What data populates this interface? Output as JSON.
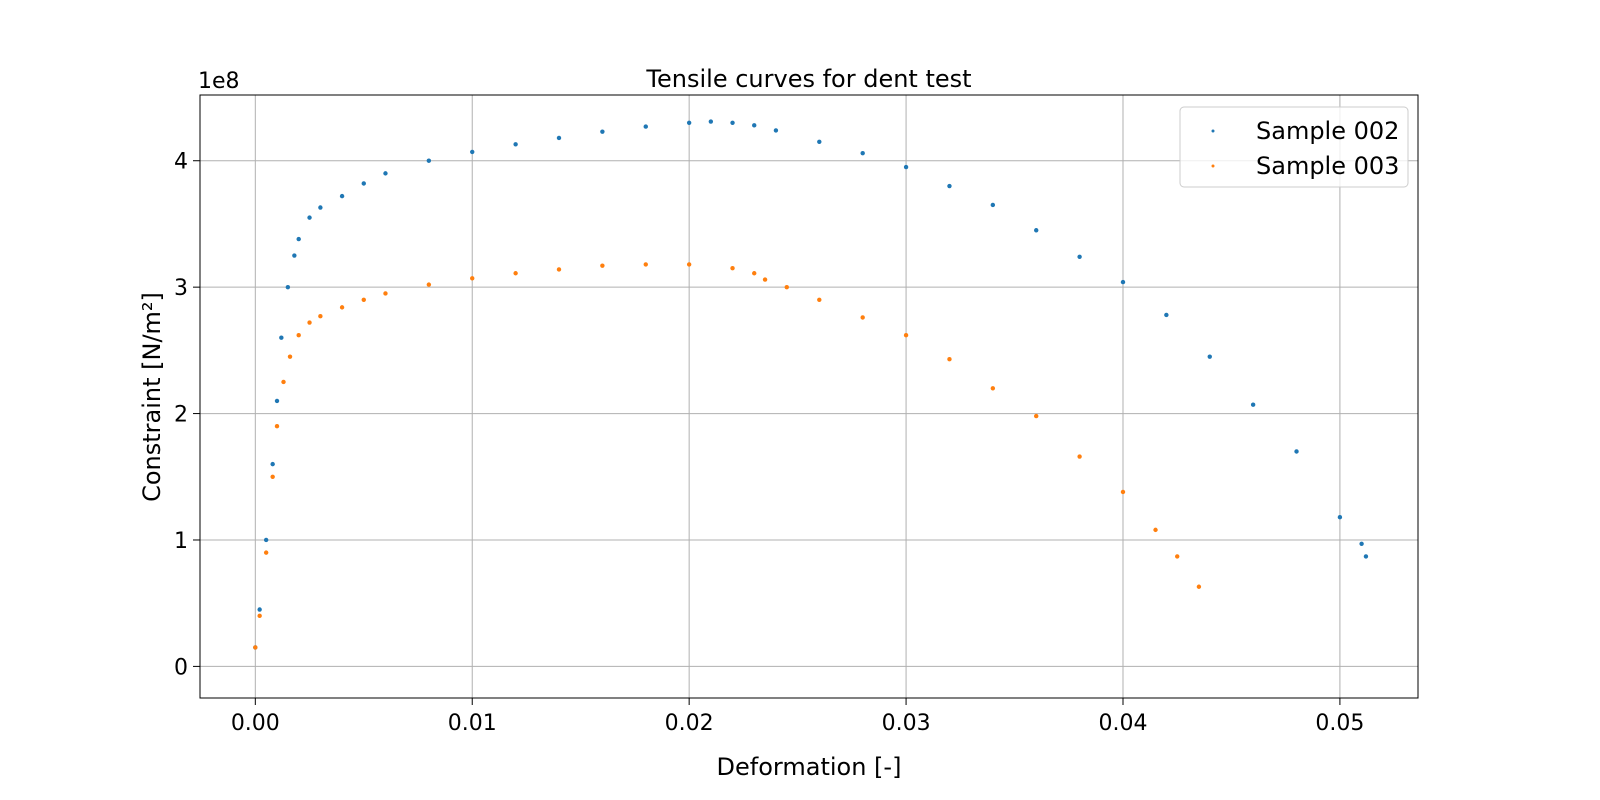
{
  "chart_data": {
    "type": "scatter",
    "title": "Tensile curves for dent test",
    "xlabel": "Deformation [-]",
    "ylabel": "Constraint [N/m²]",
    "y_offset_text": "1e8",
    "xlim": [
      -0.00255,
      0.0536
    ],
    "ylim": [
      -0.25,
      4.52
    ],
    "y_scale_factor": 100000000,
    "x_ticks": [
      0.0,
      0.01,
      0.02,
      0.03,
      0.04,
      0.05
    ],
    "x_tick_labels": [
      "0.00",
      "0.01",
      "0.02",
      "0.03",
      "0.04",
      "0.05"
    ],
    "y_ticks": [
      0,
      1,
      2,
      3,
      4
    ],
    "y_tick_labels": [
      "0",
      "1",
      "2",
      "3",
      "4"
    ],
    "grid": true,
    "legend_position": "upper-right",
    "series": [
      {
        "name": "Sample 002",
        "color": "#1f77b4",
        "x": [
          0.0,
          0.0002,
          0.0005,
          0.0008,
          0.001,
          0.0012,
          0.0015,
          0.0018,
          0.002,
          0.0025,
          0.003,
          0.004,
          0.005,
          0.006,
          0.008,
          0.01,
          0.012,
          0.014,
          0.016,
          0.018,
          0.02,
          0.021,
          0.022,
          0.023,
          0.024,
          0.026,
          0.028,
          0.03,
          0.032,
          0.034,
          0.036,
          0.038,
          0.04,
          0.042,
          0.044,
          0.046,
          0.048,
          0.05,
          0.051,
          0.0512
        ],
        "y": [
          0.15,
          0.45,
          1.0,
          1.6,
          2.1,
          2.6,
          3.0,
          3.25,
          3.38,
          3.55,
          3.63,
          3.72,
          3.82,
          3.9,
          4.0,
          4.07,
          4.13,
          4.18,
          4.23,
          4.27,
          4.3,
          4.31,
          4.3,
          4.28,
          4.24,
          4.15,
          4.06,
          3.95,
          3.8,
          3.65,
          3.45,
          3.24,
          3.04,
          2.78,
          2.45,
          2.07,
          1.7,
          1.18,
          0.97,
          0.87
        ]
      },
      {
        "name": "Sample 003",
        "color": "#ff7f0e",
        "x": [
          0.0,
          0.0002,
          0.0005,
          0.0008,
          0.001,
          0.0013,
          0.0016,
          0.002,
          0.0025,
          0.003,
          0.004,
          0.005,
          0.006,
          0.008,
          0.01,
          0.012,
          0.014,
          0.016,
          0.018,
          0.02,
          0.022,
          0.023,
          0.0235,
          0.0245,
          0.026,
          0.028,
          0.03,
          0.032,
          0.034,
          0.036,
          0.038,
          0.04,
          0.0415,
          0.0425,
          0.0435
        ],
        "y": [
          0.15,
          0.4,
          0.9,
          1.5,
          1.9,
          2.25,
          2.45,
          2.62,
          2.72,
          2.77,
          2.84,
          2.9,
          2.95,
          3.02,
          3.07,
          3.11,
          3.14,
          3.17,
          3.18,
          3.18,
          3.15,
          3.11,
          3.06,
          3.0,
          2.9,
          2.76,
          2.62,
          2.43,
          2.2,
          1.98,
          1.66,
          1.38,
          1.08,
          0.87,
          0.63
        ]
      }
    ]
  }
}
